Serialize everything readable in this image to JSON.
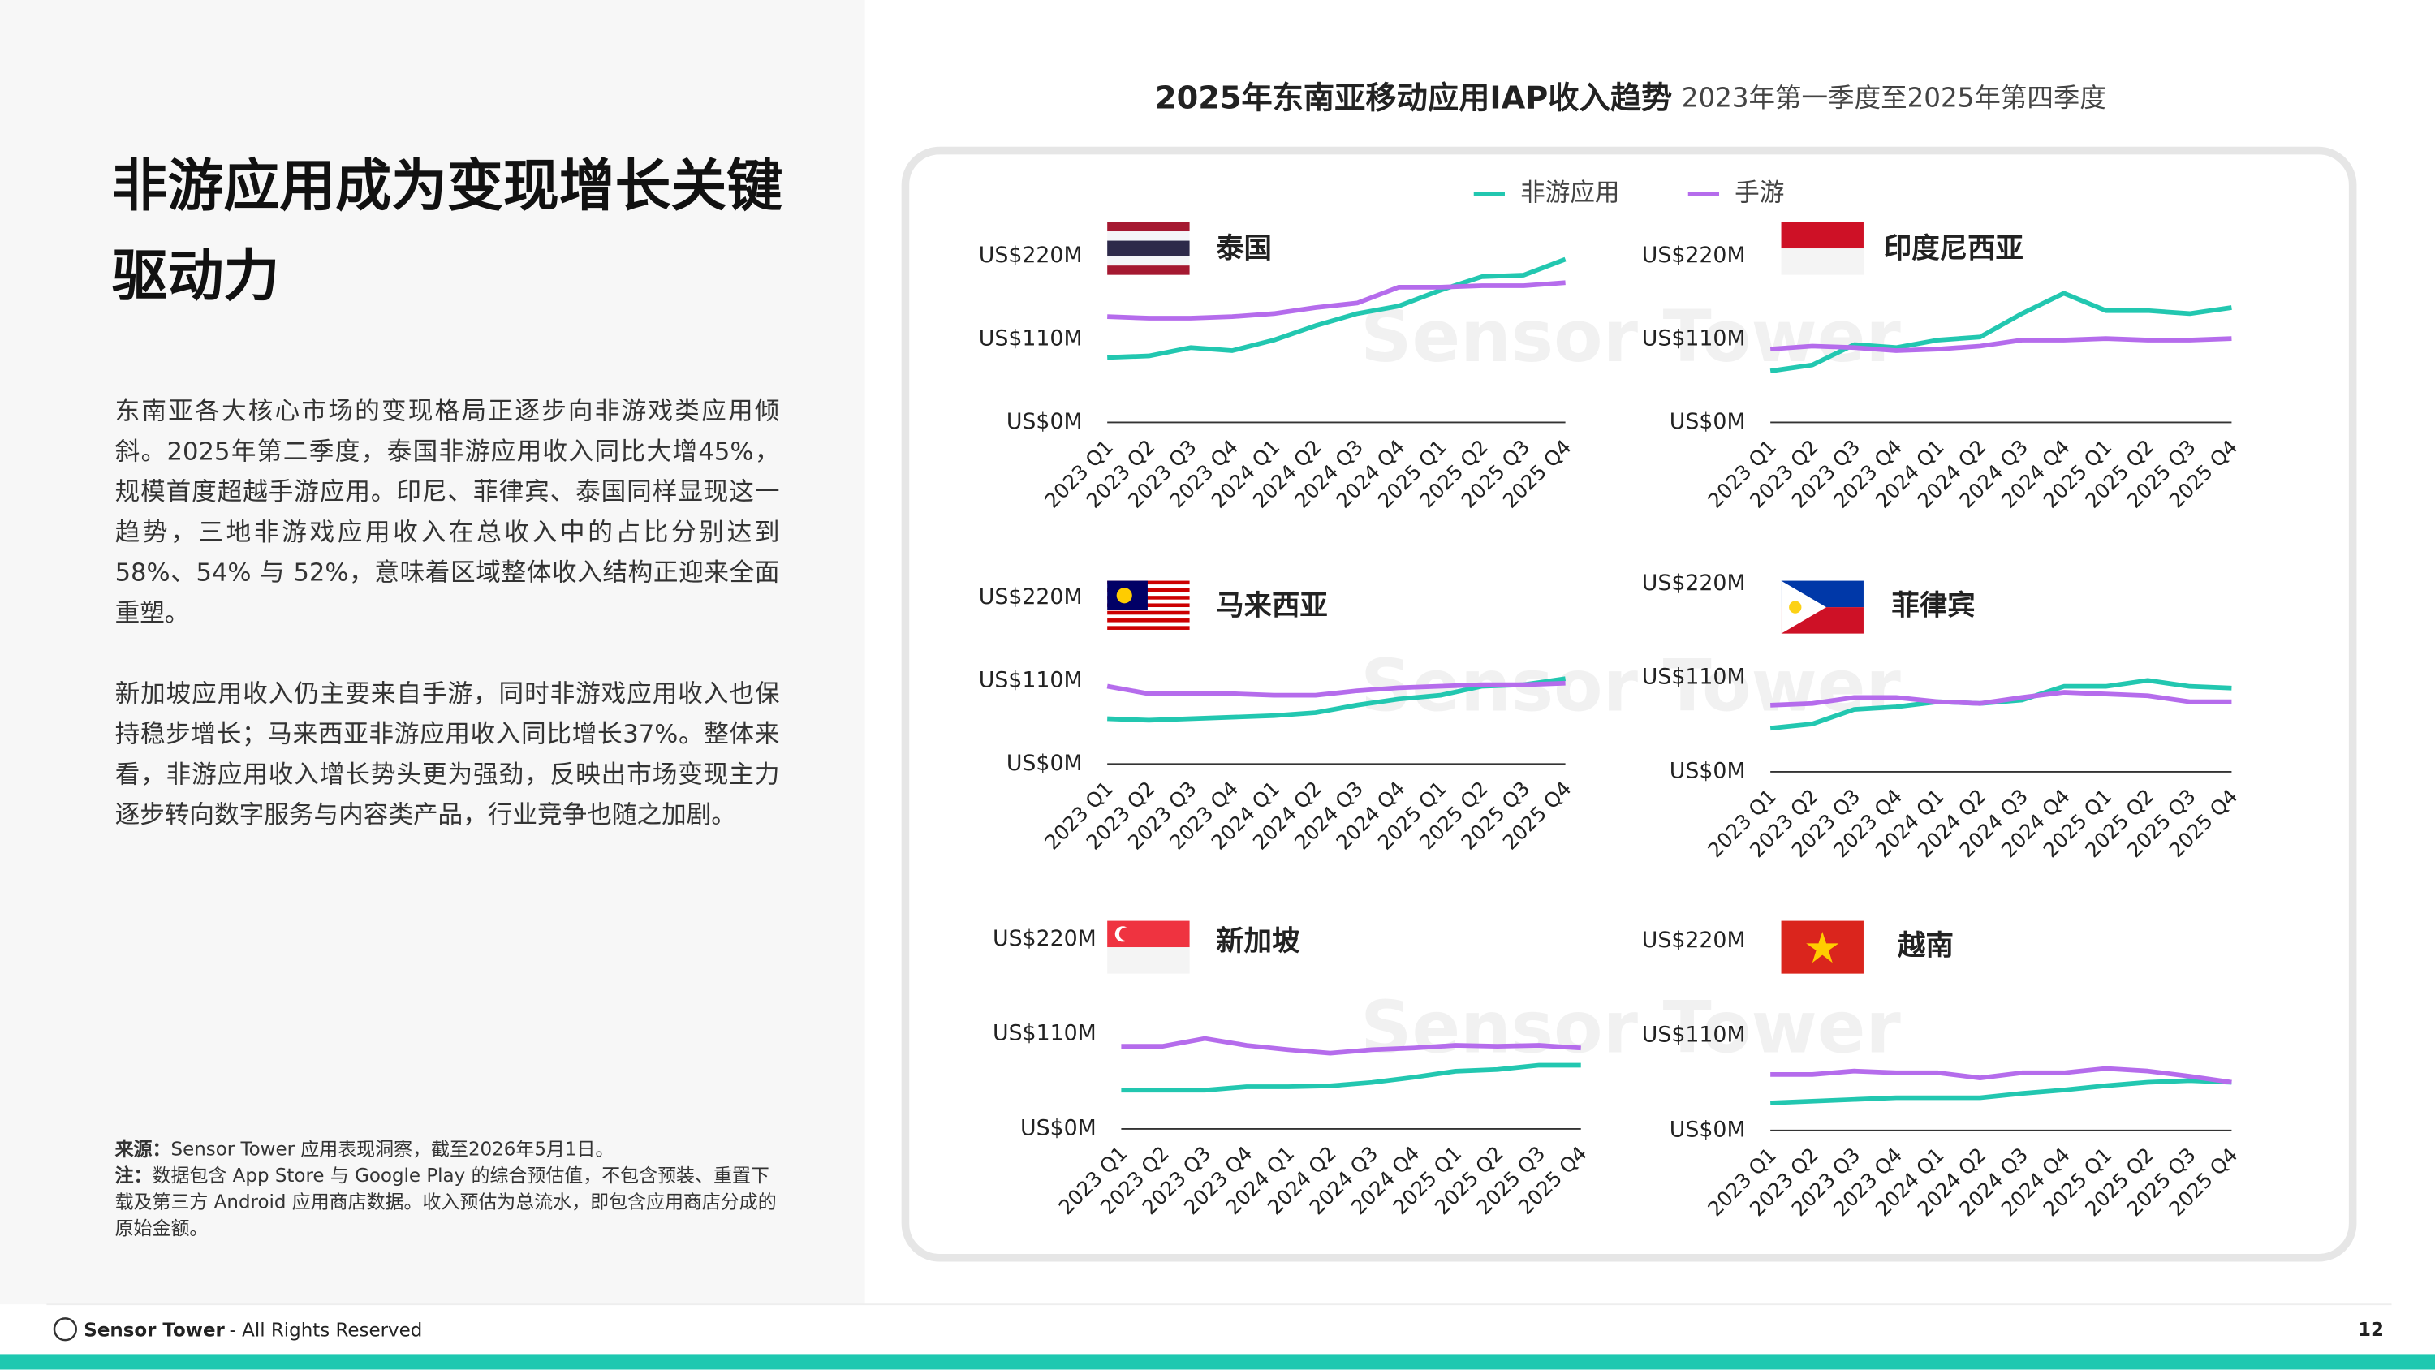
{
  "heading": "非游应用成为变现增长关键驱动力",
  "paragraphs": [
    "东南亚各大核心市场的变现格局正逐步向非游戏类应用倾斜。2025年第二季度，泰国非游应用收入同比大增45%，规模首度超越手游应用。印尼、菲律宾、泰国同样显现这一趋势，三地非游戏应用收入在总收入中的占比分别达到58%、54% 与 52%，意味着区域整体收入结构正迎来全面重塑。",
    "新加坡应用收入仍主要来自手游，同时非游戏应用收入也保持稳步增长；马来西亚非游应用收入同比增长37%。整体来看，非游应用收入增长势头更为强劲，反映出市场变现主力逐步转向数字服务与内容类产品，行业竞争也随之加剧。"
  ],
  "source": {
    "label": "来源：",
    "text": "Sensor Tower 应用表现洞察，截至2026年5月1日。"
  },
  "note": {
    "label": "注：",
    "text": "数据包含 App Store 与 Google Play 的综合预估值，不包含预装、重置下载及第三方 Android 应用商店数据。收入预估为总流水，即包含应用商店分成的原始金额。"
  },
  "footer": {
    "brand": "Sensor Tower",
    "text": "- All Rights Reserved"
  },
  "page_number": "12",
  "watermark": "Sensor Tower",
  "figure": {
    "title": "2025年东南亚移动应用IAP收入趋势",
    "subtitle": "2023年第一季度至2025年第四季度",
    "legend": [
      {
        "name": "非游应用",
        "color": "#22c7b0"
      },
      {
        "name": "手游",
        "color": "#b56cec"
      }
    ]
  },
  "chart_data": [
    {
      "type": "line",
      "title": "泰国",
      "categories": [
        "2023 Q1",
        "2023 Q2",
        "2023 Q3",
        "2023 Q4",
        "2024 Q1",
        "2024 Q2",
        "2024 Q3",
        "2024 Q4",
        "2025 Q1",
        "2025 Q2",
        "2025 Q3",
        "2025 Q4"
      ],
      "ylim": [
        0,
        220
      ],
      "yticks": [
        {
          "value": 0,
          "label": "US$0M"
        },
        {
          "value": 110,
          "label": "US$110M"
        },
        {
          "value": 220,
          "label": "US$220M"
        }
      ],
      "series": [
        {
          "values": [
            86,
            88,
            99,
            95,
            109,
            128,
            144,
            154,
            175,
            193,
            195,
            216
          ]
        },
        {
          "values": [
            140,
            138,
            138,
            140,
            144,
            152,
            158,
            179,
            179,
            181,
            181,
            185
          ]
        }
      ]
    },
    {
      "type": "line",
      "title": "印度尼西亚",
      "categories": [
        "2023 Q1",
        "2023 Q2",
        "2023 Q3",
        "2023 Q4",
        "2024 Q1",
        "2024 Q2",
        "2024 Q3",
        "2024 Q4",
        "2025 Q1",
        "2025 Q2",
        "2025 Q3",
        "2025 Q4"
      ],
      "ylim": [
        0,
        220
      ],
      "yticks": [
        {
          "value": 0,
          "label": "US$0M"
        },
        {
          "value": 110,
          "label": "US$110M"
        },
        {
          "value": 220,
          "label": "US$220M"
        }
      ],
      "series": [
        {
          "values": [
            68,
            76,
            103,
            99,
            109,
            113,
            144,
            171,
            148,
            148,
            144,
            152
          ]
        },
        {
          "values": [
            97,
            101,
            99,
            95,
            97,
            101,
            109,
            109,
            111,
            109,
            109,
            111
          ]
        }
      ]
    },
    {
      "type": "line",
      "title": "马来西亚",
      "categories": [
        "2023 Q1",
        "2023 Q2",
        "2023 Q3",
        "2023 Q4",
        "2024 Q1",
        "2024 Q2",
        "2024 Q3",
        "2024 Q4",
        "2025 Q1",
        "2025 Q2",
        "2025 Q3",
        "2025 Q4"
      ],
      "ylim": [
        0,
        220
      ],
      "yticks": [
        {
          "value": 0,
          "label": "US$0M"
        },
        {
          "value": 110,
          "label": "US$110M"
        },
        {
          "value": 220,
          "label": "US$220M"
        }
      ],
      "series": [
        {
          "values": [
            60,
            58,
            60,
            62,
            64,
            68,
            78,
            86,
            91,
            103,
            105,
            113
          ]
        },
        {
          "values": [
            103,
            93,
            93,
            93,
            91,
            91,
            97,
            101,
            103,
            105,
            105,
            107
          ]
        }
      ]
    },
    {
      "type": "line",
      "title": "菲律宾",
      "categories": [
        "2023 Q1",
        "2023 Q2",
        "2023 Q3",
        "2023 Q4",
        "2024 Q1",
        "2024 Q2",
        "2024 Q3",
        "2024 Q4",
        "2025 Q1",
        "2025 Q2",
        "2025 Q3",
        "2025 Q4"
      ],
      "ylim": [
        0,
        220
      ],
      "yticks": [
        {
          "value": 0,
          "label": "US$0M"
        },
        {
          "value": 110,
          "label": "US$110M"
        },
        {
          "value": 220,
          "label": "US$220M"
        }
      ],
      "series": [
        {
          "values": [
            51,
            56,
            73,
            76,
            82,
            80,
            84,
            100,
            100,
            107,
            100,
            98
          ]
        },
        {
          "values": [
            78,
            80,
            87,
            87,
            82,
            80,
            87,
            93,
            91,
            89,
            82,
            82
          ]
        }
      ]
    },
    {
      "type": "line",
      "title": "新加坡",
      "categories": [
        "2023 Q1",
        "2023 Q2",
        "2023 Q3",
        "2023 Q4",
        "2024 Q1",
        "2024 Q2",
        "2024 Q3",
        "2024 Q4",
        "2025 Q1",
        "2025 Q2",
        "2025 Q3",
        "2025 Q4"
      ],
      "ylim": [
        0,
        220
      ],
      "yticks": [
        {
          "value": 0,
          "label": "US$0M"
        },
        {
          "value": 110,
          "label": "US$110M"
        },
        {
          "value": 220,
          "label": "US$220M"
        }
      ],
      "series": [
        {
          "values": [
            45,
            45,
            45,
            49,
            49,
            50,
            54,
            60,
            67,
            69,
            74,
            74
          ]
        },
        {
          "values": [
            96,
            96,
            105,
            97,
            92,
            88,
            92,
            94,
            97,
            96,
            97,
            94
          ]
        }
      ]
    },
    {
      "type": "line",
      "title": "越南",
      "categories": [
        "2023 Q1",
        "2023 Q2",
        "2023 Q3",
        "2023 Q4",
        "2024 Q1",
        "2024 Q2",
        "2024 Q3",
        "2024 Q4",
        "2025 Q1",
        "2025 Q2",
        "2025 Q3",
        "2025 Q4"
      ],
      "ylim": [
        0,
        220
      ],
      "yticks": [
        {
          "value": 0,
          "label": "US$0M"
        },
        {
          "value": 110,
          "label": "US$110M"
        },
        {
          "value": 220,
          "label": "US$220M"
        }
      ],
      "series": [
        {
          "values": [
            32,
            34,
            36,
            38,
            38,
            38,
            43,
            47,
            52,
            56,
            58,
            56
          ]
        },
        {
          "values": [
            65,
            65,
            69,
            67,
            67,
            61,
            67,
            67,
            72,
            69,
            63,
            56
          ]
        }
      ]
    }
  ]
}
